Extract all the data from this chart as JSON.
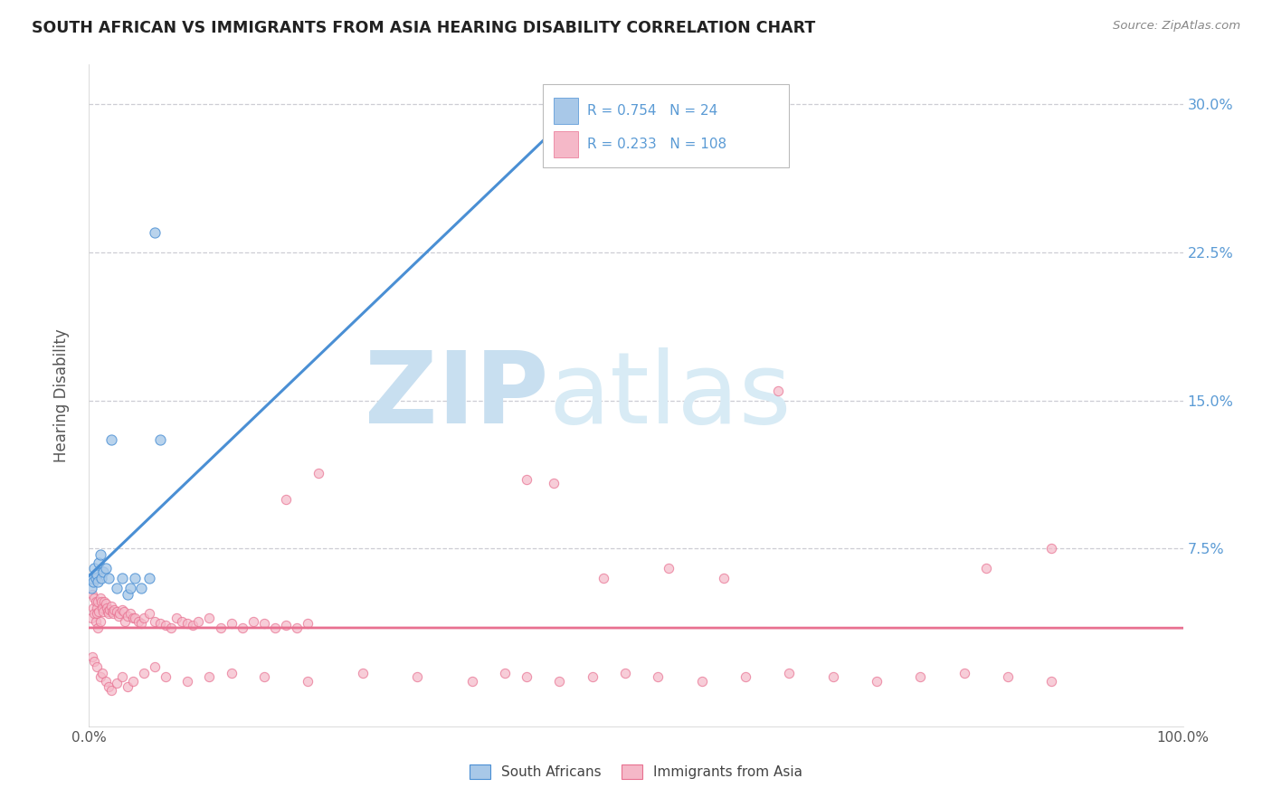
{
  "title": "SOUTH AFRICAN VS IMMIGRANTS FROM ASIA HEARING DISABILITY CORRELATION CHART",
  "source": "Source: ZipAtlas.com",
  "ylabel": "Hearing Disability",
  "xlim": [
    0,
    1.0
  ],
  "ylim": [
    -0.015,
    0.32
  ],
  "xticks": [
    0.0,
    0.25,
    0.5,
    0.75,
    1.0
  ],
  "xticklabels": [
    "0.0%",
    "",
    "",
    "",
    "100.0%"
  ],
  "yticks": [
    0.075,
    0.15,
    0.225,
    0.3
  ],
  "yticklabels": [
    "7.5%",
    "15.0%",
    "22.5%",
    "30.0%"
  ],
  "legend_labels": [
    "South Africans",
    "Immigrants from Asia"
  ],
  "blue_color": "#a8c8e8",
  "pink_color": "#f5b8c8",
  "blue_line_color": "#4a8fd4",
  "pink_line_color": "#e87090",
  "blue_text_color": "#5b9bd5",
  "legend_R1": "0.754",
  "legend_N1": "24",
  "legend_R2": "0.233",
  "legend_N2": "108",
  "sa_x": [
    0.002,
    0.003,
    0.004,
    0.005,
    0.006,
    0.007,
    0.008,
    0.009,
    0.01,
    0.011,
    0.013,
    0.015,
    0.018,
    0.02,
    0.025,
    0.03,
    0.035,
    0.038,
    0.042,
    0.048,
    0.055,
    0.06,
    0.065,
    0.44
  ],
  "sa_y": [
    0.055,
    0.06,
    0.058,
    0.065,
    0.06,
    0.062,
    0.058,
    0.068,
    0.072,
    0.06,
    0.063,
    0.065,
    0.06,
    0.13,
    0.055,
    0.06,
    0.052,
    0.055,
    0.06,
    0.055,
    0.06,
    0.235,
    0.13,
    0.285
  ],
  "asia_x_cluster": [
    0.002,
    0.003,
    0.004,
    0.005,
    0.005,
    0.006,
    0.006,
    0.007,
    0.007,
    0.008,
    0.008,
    0.009,
    0.01,
    0.01,
    0.011,
    0.012,
    0.013,
    0.014,
    0.015,
    0.016,
    0.017,
    0.018,
    0.019,
    0.02,
    0.021,
    0.022,
    0.023,
    0.025,
    0.027,
    0.028,
    0.03,
    0.032,
    0.033,
    0.035,
    0.038,
    0.04,
    0.042,
    0.045,
    0.048,
    0.05,
    0.055,
    0.06,
    0.065,
    0.07,
    0.075,
    0.08,
    0.085,
    0.09,
    0.095,
    0.1,
    0.11,
    0.12,
    0.13,
    0.14,
    0.15,
    0.16,
    0.17,
    0.18,
    0.19,
    0.2,
    0.003,
    0.005,
    0.007,
    0.01,
    0.012,
    0.015,
    0.018,
    0.02,
    0.025,
    0.03,
    0.035,
    0.04,
    0.05,
    0.06,
    0.07,
    0.09,
    0.11,
    0.13,
    0.16,
    0.2,
    0.25,
    0.3,
    0.35,
    0.38,
    0.4,
    0.43,
    0.46,
    0.49,
    0.52,
    0.56,
    0.6,
    0.64,
    0.68,
    0.72,
    0.76,
    0.8,
    0.84,
    0.88,
    0.63,
    0.88,
    0.82,
    0.4,
    0.425,
    0.21,
    0.18,
    0.47,
    0.53,
    0.58
  ],
  "asia_y_cluster": [
    0.04,
    0.052,
    0.045,
    0.042,
    0.05,
    0.048,
    0.038,
    0.045,
    0.042,
    0.048,
    0.035,
    0.043,
    0.05,
    0.038,
    0.048,
    0.045,
    0.043,
    0.048,
    0.047,
    0.045,
    0.043,
    0.042,
    0.044,
    0.046,
    0.043,
    0.042,
    0.044,
    0.043,
    0.041,
    0.042,
    0.044,
    0.043,
    0.038,
    0.041,
    0.042,
    0.04,
    0.04,
    0.038,
    0.037,
    0.04,
    0.042,
    0.038,
    0.037,
    0.036,
    0.035,
    0.04,
    0.038,
    0.037,
    0.036,
    0.038,
    0.04,
    0.035,
    0.037,
    0.035,
    0.038,
    0.037,
    0.035,
    0.036,
    0.035,
    0.037,
    0.02,
    0.018,
    0.015,
    0.01,
    0.012,
    0.008,
    0.005,
    0.003,
    0.007,
    0.01,
    0.005,
    0.008,
    0.012,
    0.015,
    0.01,
    0.008,
    0.01,
    0.012,
    0.01,
    0.008,
    0.012,
    0.01,
    0.008,
    0.012,
    0.01,
    0.008,
    0.01,
    0.012,
    0.01,
    0.008,
    0.01,
    0.012,
    0.01,
    0.008,
    0.01,
    0.012,
    0.01,
    0.008,
    0.155,
    0.075,
    0.065,
    0.11,
    0.108,
    0.113,
    0.1,
    0.06,
    0.065,
    0.06
  ]
}
